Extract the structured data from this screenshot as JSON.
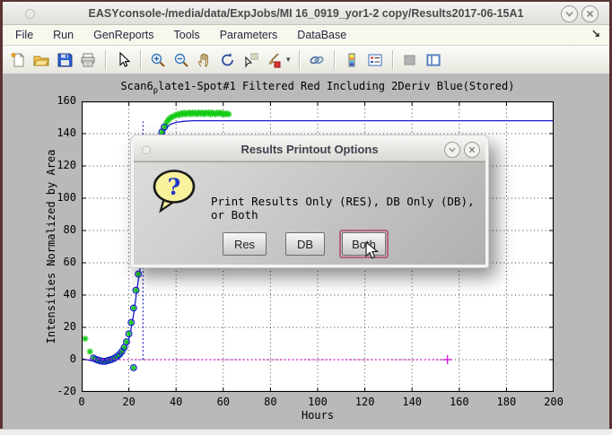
{
  "window": {
    "title": "EASYconsole-/media/data/ExpJobs/MI 16_0919_yor1-2 copy/Results2017-06-15A1",
    "controls": [
      {
        "icon": "chevron-down"
      },
      {
        "icon": "close"
      }
    ]
  },
  "menu": {
    "items": [
      {
        "label": "File"
      },
      {
        "label": "Run"
      },
      {
        "label": "GenReports"
      },
      {
        "label": "Tools"
      },
      {
        "label": "Parameters"
      },
      {
        "label": "DataBase"
      }
    ],
    "dock_arrow": "↘"
  },
  "toolbar": {
    "icons": [
      "new-document",
      "open-folder",
      "save",
      "print",
      "arrow-cursor",
      "zoom-in",
      "zoom-out",
      "pan-hand",
      "rotate-3d",
      "data-cursor",
      "brush",
      "link-plots",
      "insert-colorbar",
      "insert-legend",
      "hide-plot-tools",
      "show-plot-tools"
    ],
    "brush_caret": "▾"
  },
  "dialog": {
    "title": "Results Printout Options",
    "icon": "question-bubble",
    "message": "Print Results Only (RES), DB Only (DB), or Both",
    "buttons": [
      {
        "label": "Res",
        "focused": false
      },
      {
        "label": "DB",
        "focused": false
      },
      {
        "label": "Both",
        "focused": true
      }
    ],
    "focus_ring_color": "#b4637f"
  },
  "chart_data": {
    "type": "line",
    "title": "Scan6_{p}late1-Spot#1 Filtered Red Including 2Deriv Blue(Stored)",
    "title_parts": {
      "pre": "Scan6",
      "sub": "p",
      "post": "late1-Spot#1 Filtered Red Including 2Deriv Blue(Stored)"
    },
    "xlabel": "Hours",
    "ylabel": "Intensities Normalized by Area",
    "xlim": [
      0,
      200
    ],
    "ylim": [
      -20,
      160
    ],
    "xticks": [
      0,
      20,
      40,
      60,
      80,
      100,
      120,
      140,
      160,
      180,
      200
    ],
    "yticks": [
      -20,
      0,
      20,
      40,
      60,
      80,
      100,
      120,
      140,
      160
    ],
    "grid": true,
    "grid_style": "dotted",
    "background": "#ffffff",
    "series": [
      {
        "name": "fitted-curve",
        "type": "line",
        "color": "#1a1ad2",
        "points": [
          [
            0,
            0.5
          ],
          [
            2,
            0
          ],
          [
            4,
            -0.6
          ],
          [
            6,
            -1.1
          ],
          [
            8,
            -1.4
          ],
          [
            10,
            -1.4
          ],
          [
            12,
            -1
          ],
          [
            14,
            -0.2
          ],
          [
            15,
            0.6
          ],
          [
            16,
            1.6
          ],
          [
            17,
            3
          ],
          [
            18,
            5
          ],
          [
            19,
            8.5
          ],
          [
            20,
            13
          ],
          [
            21,
            19.5
          ],
          [
            22,
            28
          ],
          [
            23,
            38.5
          ],
          [
            24,
            49
          ],
          [
            25,
            59.5
          ],
          [
            26,
            70.5
          ],
          [
            27,
            82
          ],
          [
            28,
            94
          ],
          [
            29,
            104.5
          ],
          [
            30,
            113.5
          ],
          [
            31,
            121.5
          ],
          [
            32,
            128
          ],
          [
            33,
            133.5
          ],
          [
            34,
            138
          ],
          [
            35,
            141.5
          ],
          [
            36,
            143.5
          ],
          [
            37,
            145
          ],
          [
            38,
            146
          ],
          [
            40,
            147
          ],
          [
            43,
            147.6
          ],
          [
            47,
            148
          ],
          [
            55,
            148
          ],
          [
            70,
            148
          ],
          [
            100,
            148
          ],
          [
            150,
            148
          ],
          [
            200,
            148
          ]
        ]
      },
      {
        "name": "filtered-data-asterisks",
        "type": "asterisk",
        "color": "#15cb15",
        "points": [
          [
            1.5,
            13
          ],
          [
            3.5,
            5
          ],
          [
            5,
            1
          ],
          [
            6,
            0.2
          ],
          [
            7,
            -0.3
          ],
          [
            8,
            -0.8
          ],
          [
            9,
            -1
          ],
          [
            10,
            -1
          ],
          [
            11,
            -0.6
          ],
          [
            12,
            -0.2
          ],
          [
            13,
            0.3
          ],
          [
            14,
            1
          ],
          [
            15,
            2
          ],
          [
            16,
            3.2
          ],
          [
            17,
            5
          ],
          [
            18,
            7.5
          ],
          [
            19,
            11
          ],
          [
            20,
            16
          ],
          [
            21,
            23
          ],
          [
            22,
            32
          ],
          [
            22,
            -5
          ],
          [
            23,
            43
          ],
          [
            24,
            53
          ],
          [
            25,
            62
          ],
          [
            26,
            73
          ],
          [
            27,
            85
          ],
          [
            28,
            97
          ],
          [
            29,
            108
          ],
          [
            30,
            117
          ],
          [
            31,
            125
          ],
          [
            32,
            131
          ],
          [
            33,
            137
          ],
          [
            34,
            141
          ],
          [
            35,
            144
          ],
          [
            35.7,
            146
          ],
          [
            36.4,
            148
          ],
          [
            37.1,
            149
          ],
          [
            37.8,
            150
          ],
          [
            38.5,
            150.5
          ],
          [
            39.2,
            151
          ],
          [
            39.9,
            151.5
          ],
          [
            40.6,
            152
          ],
          [
            41.3,
            151.5
          ],
          [
            42,
            152.5
          ],
          [
            42.7,
            152
          ],
          [
            43.4,
            153
          ],
          [
            44.1,
            152
          ],
          [
            44.8,
            152.5
          ],
          [
            45.5,
            153
          ],
          [
            46.2,
            152
          ],
          [
            46.9,
            153
          ],
          [
            47.6,
            152.5
          ],
          [
            48.3,
            153
          ],
          [
            49,
            152
          ],
          [
            49.7,
            153
          ],
          [
            50.4,
            152.5
          ],
          [
            51.1,
            153
          ],
          [
            51.8,
            152
          ],
          [
            52.5,
            153
          ],
          [
            53.2,
            152.5
          ],
          [
            53.9,
            153
          ],
          [
            54.6,
            152
          ],
          [
            55.3,
            153
          ],
          [
            56,
            152.5
          ],
          [
            56.7,
            152
          ],
          [
            57.4,
            153
          ],
          [
            58.1,
            152.5
          ],
          [
            58.8,
            153
          ],
          [
            59.5,
            152
          ],
          [
            60.2,
            152.5
          ],
          [
            60.9,
            152
          ],
          [
            61.6,
            152.5
          ],
          [
            62.3,
            152
          ]
        ]
      },
      {
        "name": "marker-circles",
        "type": "circle",
        "color": "#1a1ad2",
        "points": [
          [
            5,
            1
          ],
          [
            6,
            0.2
          ],
          [
            7,
            -0.3
          ],
          [
            8,
            -0.8
          ],
          [
            9,
            -1
          ],
          [
            10,
            -1
          ],
          [
            11,
            -0.6
          ],
          [
            12,
            -0.2
          ],
          [
            13,
            0.3
          ],
          [
            14,
            1
          ],
          [
            15,
            2
          ],
          [
            16,
            3.2
          ],
          [
            17,
            5
          ],
          [
            18,
            7.5
          ],
          [
            19,
            11
          ],
          [
            20,
            16
          ],
          [
            21,
            23
          ],
          [
            22,
            32
          ],
          [
            22,
            -5
          ],
          [
            23,
            43
          ],
          [
            24,
            53
          ],
          [
            25,
            62
          ],
          [
            26,
            73
          ],
          [
            27,
            85
          ],
          [
            28,
            97
          ],
          [
            29,
            108
          ],
          [
            30,
            117
          ],
          [
            31,
            125
          ],
          [
            32,
            131
          ],
          [
            33,
            137
          ],
          [
            34,
            141
          ],
          [
            35,
            144
          ]
        ]
      },
      {
        "name": "baseline",
        "type": "dotline",
        "color": "#d419d4",
        "end_marker": "plus",
        "points": [
          [
            0,
            0
          ],
          [
            155,
            0
          ]
        ]
      },
      {
        "name": "inflection-vline",
        "type": "vline",
        "color": "#2a2ad0",
        "x": 26,
        "y0": 0,
        "y1": 147.5
      }
    ]
  }
}
